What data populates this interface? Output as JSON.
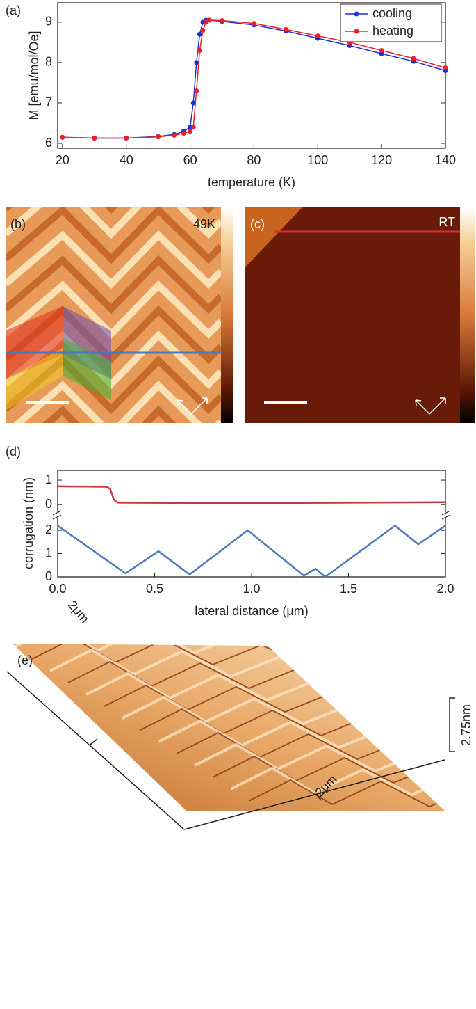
{
  "chart_data": [
    {
      "type": "line",
      "title": "(a)",
      "xlabel": "temperature (K)",
      "ylabel": "M [emu/mol/Oe]",
      "x": [
        20,
        30,
        40,
        50,
        55,
        58,
        60,
        61,
        62,
        63,
        64,
        65,
        66,
        70,
        80,
        90,
        100,
        110,
        120,
        130,
        140
      ],
      "series": [
        {
          "name": "cooling",
          "color": "#1f2fd6",
          "values": [
            6.15,
            6.13,
            6.13,
            6.17,
            6.22,
            6.3,
            6.4,
            7.0,
            8.0,
            8.7,
            9.0,
            9.05,
            9.05,
            9.02,
            8.93,
            8.78,
            8.6,
            8.42,
            8.22,
            8.03,
            7.8
          ]
        },
        {
          "name": "heating",
          "color": "#e8202a",
          "values": [
            6.15,
            6.13,
            6.13,
            6.16,
            6.2,
            6.25,
            6.3,
            6.4,
            7.3,
            8.3,
            8.8,
            9.0,
            9.05,
            9.04,
            8.97,
            8.82,
            8.66,
            8.5,
            8.3,
            8.1,
            7.87
          ]
        }
      ],
      "xlim": [
        18.5,
        140
      ],
      "xticks": [
        20,
        40,
        60,
        80,
        100,
        120,
        140
      ],
      "ylim": [
        5.88,
        9.48
      ],
      "yticks": [
        6,
        7,
        8,
        9
      ],
      "markers": true,
      "legend": "upper right"
    },
    {
      "type": "line",
      "title": "(d)",
      "ylabel": "corrugation (nm)",
      "color": "#c8343a",
      "x": [
        0,
        0.25,
        0.27,
        0.29,
        0.31,
        1.0,
        2.0
      ],
      "values": [
        0.75,
        0.73,
        0.65,
        0.2,
        0.08,
        0.06,
        0.1
      ],
      "xlim": [
        0,
        2
      ],
      "ylim": [
        -0.45,
        1.4
      ],
      "yticks": [
        0,
        1
      ]
    },
    {
      "type": "line",
      "xlabel": "lateral distance (μm)",
      "color": "#4a78b8",
      "x": [
        0,
        0.35,
        0.52,
        0.68,
        0.98,
        1.27,
        1.33,
        1.38,
        1.74,
        1.86,
        2.0
      ],
      "values": [
        2.2,
        0.15,
        1.1,
        0.1,
        2.0,
        0.05,
        0.35,
        0.0,
        2.2,
        1.4,
        2.2
      ],
      "xlim": [
        0,
        2
      ],
      "xticks": [
        {
          "value": 0,
          "label": "0.0"
        },
        {
          "value": 0.5,
          "label": "0.5"
        },
        {
          "value": 1,
          "label": "1.0"
        },
        {
          "value": 1.5,
          "label": "1.5"
        },
        {
          "value": 2,
          "label": "2.0"
        }
      ],
      "ylim": [
        0,
        2.63
      ],
      "yticks": [
        0,
        1,
        2
      ]
    }
  ],
  "images": [
    {
      "label": "(b)",
      "annotation": "49K"
    },
    {
      "label": "(c)",
      "annotation": "RT"
    },
    {
      "label": "(e)",
      "scale_x": "2μm",
      "scale_y": "2μm",
      "scale_z": "2.75nm"
    }
  ]
}
